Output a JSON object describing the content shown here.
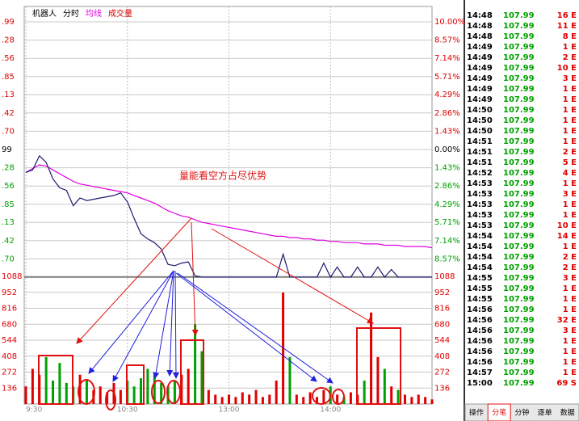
{
  "header": {
    "items": [
      {
        "text": "机器人",
        "color": "#000"
      },
      {
        "text": "分时",
        "color": "#000"
      },
      {
        "text": "均线",
        "color": "#e000e0"
      },
      {
        "text": "成交量",
        "color": "#d00000"
      }
    ]
  },
  "annotation": "量能看空方占尽优势",
  "price_chart": {
    "ylim": [
      -10,
      10
    ],
    "ticks": [
      {
        "value": 10,
        "label": "10.00%",
        "left": ".99"
      },
      {
        "value": 8.57,
        "label": "8.57%",
        "left": ".28"
      },
      {
        "value": 7.14,
        "label": "7.14%",
        "left": ".56"
      },
      {
        "value": 5.71,
        "label": "5.71%",
        "left": ".85"
      },
      {
        "value": 4.29,
        "label": "4.29%",
        "left": ".13"
      },
      {
        "value": 2.86,
        "label": "2.86%",
        "left": ".42"
      },
      {
        "value": 1.43,
        "label": "1.43%",
        "left": ".70"
      },
      {
        "value": 0,
        "label": "0.00%",
        "left": "99"
      },
      {
        "value": -1.43,
        "label": "1.43%",
        "left": ".28"
      },
      {
        "value": -2.86,
        "label": "2.86%",
        "left": ".56"
      },
      {
        "value": -4.29,
        "label": "4.29%",
        "left": ".85"
      },
      {
        "value": -5.71,
        "label": "5.71%",
        "left": ".13"
      },
      {
        "value": -7.14,
        "label": "7.14%",
        "left": ".42"
      },
      {
        "value": -8.57,
        "label": "8.57%",
        "left": ".70"
      }
    ],
    "price": [
      -1.8,
      -1.6,
      -0.5,
      -1.0,
      -2.3,
      -3.0,
      -3.2,
      -4.4,
      -3.8,
      -4.0,
      -3.9,
      -3.8,
      -3.7,
      -3.6,
      -3.4,
      -4.1,
      -5.4,
      -6.6,
      -7.0,
      -7.3,
      -7.8,
      -9.0,
      -9.1,
      -8.9,
      -8.8,
      -9.9,
      -10,
      -10,
      -10,
      -10,
      -10,
      -10,
      -10,
      -10,
      -10,
      -10,
      -10,
      -10,
      -8.2,
      -10,
      -10,
      -10,
      -10,
      -10,
      -8.9,
      -10,
      -9.2,
      -10,
      -10,
      -9.2,
      -10,
      -10,
      -9.2,
      -10,
      -9.4,
      -10,
      -10,
      -10,
      -10,
      -10,
      -10
    ],
    "average": [
      -1.8,
      -1.5,
      -1.2,
      -1.3,
      -1.6,
      -1.9,
      -2.2,
      -2.5,
      -2.7,
      -2.8,
      -2.9,
      -3.0,
      -3.1,
      -3.2,
      -3.3,
      -3.4,
      -3.6,
      -3.8,
      -4.0,
      -4.2,
      -4.5,
      -4.8,
      -5.0,
      -5.2,
      -5.3,
      -5.5,
      -5.7,
      -5.8,
      -5.9,
      -6.0,
      -6.1,
      -6.2,
      -6.3,
      -6.4,
      -6.5,
      -6.6,
      -6.7,
      -6.8,
      -6.8,
      -6.9,
      -6.9,
      -7.0,
      -7.0,
      -7.1,
      -7.1,
      -7.2,
      -7.2,
      -7.3,
      -7.3,
      -7.3,
      -7.4,
      -7.4,
      -7.4,
      -7.5,
      -7.5,
      -7.5,
      -7.6,
      -7.6,
      -7.6,
      -7.6,
      -7.7
    ],
    "price_color": "#1a1a6e",
    "average_color": "#e000e0"
  },
  "volume_chart": {
    "ylim": [
      0,
      1088
    ],
    "ticks": [
      1088,
      952,
      816,
      680,
      544,
      408,
      272,
      136
    ],
    "values": [
      150,
      300,
      250,
      400,
      200,
      350,
      180,
      150,
      250,
      200,
      120,
      150,
      100,
      180,
      120,
      200,
      150,
      220,
      300,
      250,
      180,
      150,
      200,
      250,
      300,
      680,
      450,
      120,
      80,
      60,
      80,
      60,
      100,
      80,
      120,
      60,
      80,
      200,
      950,
      400,
      80,
      60,
      100,
      60,
      120,
      150,
      80,
      60,
      100,
      80,
      200,
      780,
      400,
      300,
      150,
      120,
      80,
      60,
      80,
      60,
      40
    ],
    "up_color": "#e00000",
    "down_color": "#00a000"
  },
  "time_labels": [
    {
      "label": "9:30",
      "index": 0
    },
    {
      "label": "10:30",
      "index": 15
    },
    {
      "label": "13:00",
      "index": 30
    },
    {
      "label": "14:00",
      "index": 45
    }
  ],
  "trades": [
    [
      "14:48",
      "107.99",
      "16 E"
    ],
    [
      "14:48",
      "107.99",
      "11 E"
    ],
    [
      "14:48",
      "107.99",
      "8 E"
    ],
    [
      "14:49",
      "107.99",
      "1 E"
    ],
    [
      "14:49",
      "107.99",
      "2 E"
    ],
    [
      "14:49",
      "107.99",
      "10 E"
    ],
    [
      "14:49",
      "107.99",
      "3 E"
    ],
    [
      "14:49",
      "107.99",
      "1 E"
    ],
    [
      "14:49",
      "107.99",
      "1 E"
    ],
    [
      "14:50",
      "107.99",
      "1 E"
    ],
    [
      "14:50",
      "107.99",
      "1 E"
    ],
    [
      "14:50",
      "107.99",
      "1 E"
    ],
    [
      "14:51",
      "107.99",
      "1 E"
    ],
    [
      "14:51",
      "107.99",
      "2 E"
    ],
    [
      "14:51",
      "107.99",
      "5 E"
    ],
    [
      "14:52",
      "107.99",
      "4 E"
    ],
    [
      "14:53",
      "107.99",
      "1 E"
    ],
    [
      "14:53",
      "107.99",
      "3 E"
    ],
    [
      "14:53",
      "107.99",
      "1 E"
    ],
    [
      "14:53",
      "107.99",
      "1 E"
    ],
    [
      "14:53",
      "107.99",
      "10 E"
    ],
    [
      "14:54",
      "107.99",
      "14 E"
    ],
    [
      "14:54",
      "107.99",
      "1 E"
    ],
    [
      "14:54",
      "107.99",
      "2 E"
    ],
    [
      "14:54",
      "107.99",
      "2 E"
    ],
    [
      "14:55",
      "107.99",
      "3 E"
    ],
    [
      "14:55",
      "107.99",
      "1 E"
    ],
    [
      "14:55",
      "107.99",
      "1 E"
    ],
    [
      "14:56",
      "107.99",
      "1 E"
    ],
    [
      "14:56",
      "107.99",
      "32 E"
    ],
    [
      "14:56",
      "107.99",
      "3 E"
    ],
    [
      "14:56",
      "107.99",
      "1 E"
    ],
    [
      "14:56",
      "107.99",
      "1 E"
    ],
    [
      "14:56",
      "107.99",
      "1 E"
    ],
    [
      "14:57",
      "107.99",
      "1 E"
    ],
    [
      "15:00",
      "107.99",
      "69 S"
    ]
  ],
  "tabs": [
    "操作",
    "分笔",
    "分钟",
    "逐单",
    "数据"
  ]
}
